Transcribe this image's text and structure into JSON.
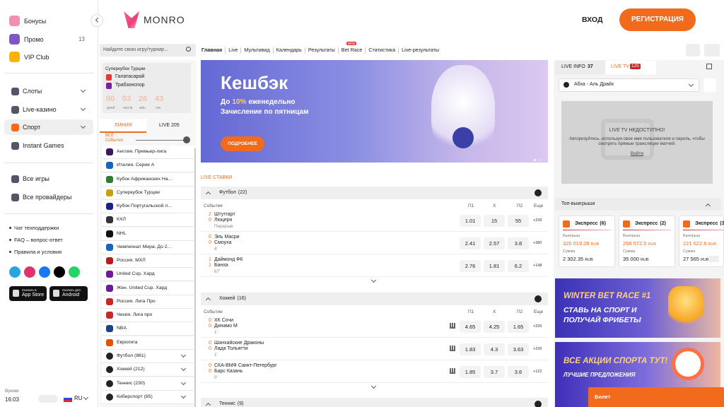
{
  "sidebar": {
    "top_menu": [
      "Бонусы",
      "Промо",
      "VIP Club"
    ],
    "promo_count": "13",
    "main_menu": [
      "Слоты",
      "Live-казино",
      "Спорт",
      "Instant Games"
    ],
    "all_menu": [
      "Все игры",
      "Все провайдеры"
    ],
    "links": [
      "Чат техподдержки",
      "FAQ – вопрос-ответ",
      "Правила и условия"
    ],
    "app_store": {
      "small": "Скачать в",
      "big": "App Store"
    },
    "android": {
      "small": "Скачать для",
      "big": "Android"
    },
    "time_label": "Время",
    "time": "16:03",
    "lang": "RU"
  },
  "header": {
    "logo": "MONRO",
    "login": "ВХОД",
    "register": "РЕГИСТРАЦИЯ"
  },
  "search_placeholder": "Найдите свою игру/турнир...",
  "nav": [
    "Главная",
    "Live",
    "Мультивид",
    "Календарь",
    "Результаты",
    "Bet Race",
    "Статистика",
    "Live-результаты"
  ],
  "new_badge": "NEW",
  "featured": {
    "title": "Суперкубок Турции",
    "team1": "Галатасарай",
    "team2": "Трабзонспор",
    "countdown": [
      {
        "value": "00",
        "unit": "дней"
      },
      {
        "value": "03",
        "unit": "часов"
      },
      {
        "value": "26",
        "unit": "мин"
      },
      {
        "value": "43",
        "unit": "сек"
      }
    ]
  },
  "tabs": {
    "line": "ЛИНИЯ",
    "live": "LIVE",
    "live_count": "205",
    "all_events": "ВСЕ События"
  },
  "leagues": [
    "Англия. Премьер-лига",
    "Италия. Серия А",
    "Кубок Африканских На...",
    "Суперкубок Турции",
    "Кубок Португальской л...",
    "КХЛ",
    "NHL",
    "Чемпионат Мира. До 2...",
    "Россия. МХЛ",
    "United Cup. Хард",
    "Жен. United Cup. Хард",
    "Россия. Лига Про",
    "Чехия. Лига про",
    "NBA",
    "Евролига"
  ],
  "sports": [
    "Футбол (861)",
    "Хоккей (212)",
    "Теннис (230)",
    "Киберспорт (85)"
  ],
  "banner": {
    "title": "Кешбэк",
    "line1_pre": "До",
    "highlight": "10%",
    "line1_post": "еженедельно",
    "line2": "Зачисление по пятницам",
    "button": "ПОДРОБНЕЕ"
  },
  "live_bets_title": "LIVE СТАВКИ",
  "sections": [
    {
      "name": "Футбол",
      "count": "(22)",
      "headers": [
        "Событие",
        "П1",
        "X",
        "П2",
        "Еще"
      ],
      "events": [
        {
          "score1": "2",
          "team1": "Штутгарт",
          "score2": "0",
          "team2": "Люцерн",
          "status": "Перерыв",
          "odds": [
            "1.01",
            "15",
            "55"
          ],
          "more": "+239"
        },
        {
          "score1": "0",
          "team1": "Эль Масри",
          "score2": "0",
          "team2": "Смоуха",
          "status": "4'",
          "odds": [
            "2.41",
            "2.57",
            "3.8"
          ],
          "more": "+380"
        },
        {
          "score1": "1",
          "team1": "Даймонд ФК",
          "score2": "1",
          "team2": "Банха",
          "status": "67'",
          "odds": [
            "2.76",
            "1.81",
            "6.2"
          ],
          "more": "+148"
        }
      ]
    },
    {
      "name": "Хоккей",
      "count": "(16)",
      "headers": [
        "Событие",
        "П1",
        "X",
        "П2",
        "Еще"
      ],
      "events": [
        {
          "score1": "0",
          "team1": "ХК Сочи",
          "score2": "0",
          "team2": "Динамо М",
          "status": "1'",
          "odds": [
            "4.65",
            "4.25",
            "1.65"
          ],
          "more": "+226"
        },
        {
          "score1": "0",
          "team1": "Шанхайские Драконы",
          "score2": "0",
          "team2": "Лада Тольятти",
          "status": "1'",
          "odds": [
            "1.83",
            "4.3",
            "3.63"
          ],
          "more": "+230"
        },
        {
          "score1": "0",
          "team1": "СКА-ВМФ Санкт-Петербург",
          "score2": "0",
          "team2": "Барс Казань",
          "status": "0'",
          "odds": [
            "1.85",
            "3.7",
            "3.6"
          ],
          "more": "+122"
        }
      ]
    },
    {
      "name": "Теннис",
      "count": "(9)"
    }
  ],
  "right": {
    "live_info": "LIVE INFO",
    "live_info_count": "37",
    "live_tv": "LIVE TV",
    "live_tv_count": "125",
    "match_select": "Абха - Аль Драйх",
    "tv_unavailable": "LIVE TV НЕДОСТУПНО!",
    "tv_message": "Авторизуйтесь, используя свое имя пользователя и пароль, чтобы смотреть прямые трансляции матчей.",
    "tv_login": "Войти"
  },
  "top_wins": {
    "title": "Топ-выигрыши",
    "cards": [
      {
        "type": "Экспресс",
        "count": "(6)",
        "win_label": "Выигрыш",
        "win": "325 019.28",
        "currency": "RUB",
        "stake_label": "Сумма",
        "stake": "2 302.35"
      },
      {
        "type": "Экспресс",
        "count": "(2)",
        "win_label": "Выигрыш",
        "win": "268 572.5",
        "currency": "RUB",
        "stake_label": "Сумма",
        "stake": "35 000"
      },
      {
        "type": "Экспресс",
        "count": "(3)",
        "win_label": "Выигрыш",
        "win": "221 622.6",
        "currency": "RUB",
        "stake_label": "Сумма",
        "stake": "27 565"
      }
    ]
  },
  "promos": [
    {
      "title": "WINTER BET RACE #1",
      "text": "СТАВЬ НА СПОРТ И ПОЛУЧАЙ ФРИБЕТЫ"
    },
    {
      "title": "ВСЕ АКЦИИ СПОРТА ТУТ!",
      "text": "ЛУЧШИЕ ПРЕДЛОЖЕНИЯ"
    }
  ],
  "ticket": "Билет"
}
